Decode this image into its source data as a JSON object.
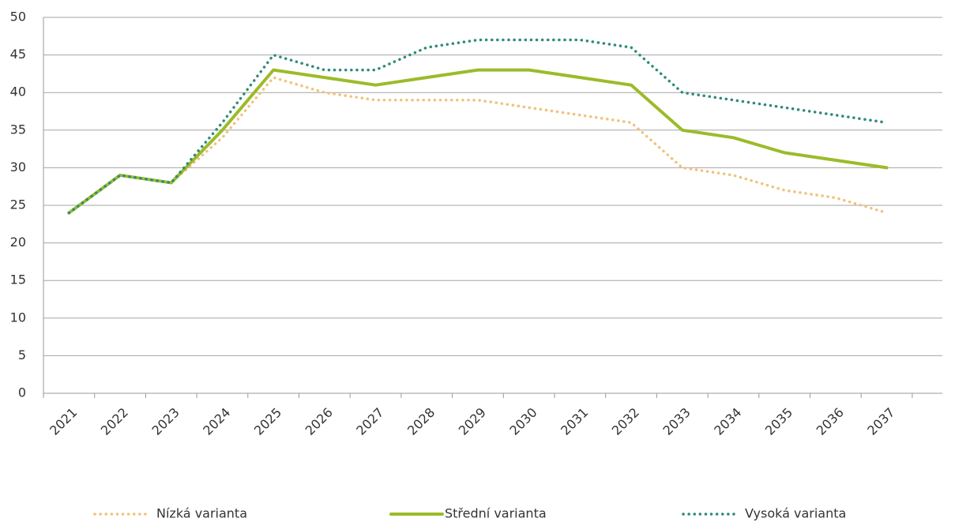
{
  "chart_data": {
    "type": "line",
    "categories": [
      "2021",
      "2022",
      "2023",
      "2024",
      "2025",
      "2026",
      "2027",
      "2028",
      "2029",
      "2030",
      "2031",
      "2032",
      "2033",
      "2034",
      "2035",
      "2036",
      "2037"
    ],
    "series": [
      {
        "name": "Nízká varianta",
        "color": "#f0c27b",
        "style": "dotted",
        "values": [
          24,
          29,
          28,
          34,
          42,
          40,
          39,
          39,
          39,
          38,
          37,
          36,
          30,
          29,
          27,
          26,
          24
        ]
      },
      {
        "name": "Střední varianta",
        "color": "#9bbb2a",
        "style": "solid",
        "values": [
          24,
          29,
          28,
          35,
          43,
          42,
          41,
          42,
          43,
          43,
          42,
          41,
          35,
          34,
          32,
          31,
          30
        ]
      },
      {
        "name": "Vysoká varianta",
        "color": "#2e8b7a",
        "style": "dotted",
        "values": [
          24,
          29,
          28,
          36,
          45,
          43,
          43,
          46,
          47,
          47,
          47,
          46,
          40,
          39,
          38,
          37,
          36
        ]
      }
    ],
    "ylim": [
      0,
      50
    ],
    "yticks": [
      0,
      5,
      10,
      15,
      20,
      25,
      30,
      35,
      40,
      45,
      50
    ],
    "grid": true,
    "legend": "bottom"
  }
}
